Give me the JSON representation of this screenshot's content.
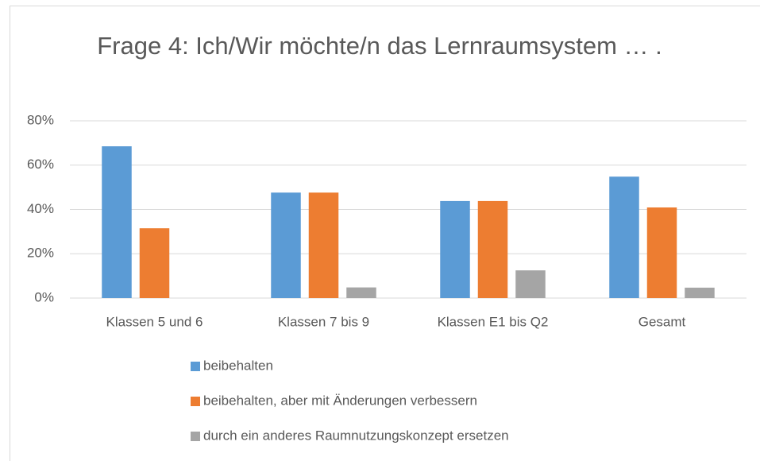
{
  "chart_data": {
    "type": "bar",
    "title": "Frage 4: Ich/Wir möchte/n das Lernraumsystem … .",
    "categories": [
      "Klassen 5 und 6",
      "Klassen 7 bis 9",
      "Klassen E1 bis Q2",
      "Gesamt"
    ],
    "series": [
      {
        "name": "beibehalten",
        "color": "#5b9bd5",
        "values": [
          68.5,
          47.6,
          43.8,
          54.8
        ]
      },
      {
        "name": "beibehalten, aber mit Änderungen verbessern",
        "color": "#ed7d31",
        "values": [
          31.5,
          47.6,
          43.8,
          40.9
        ]
      },
      {
        "name": "durch ein anderes Raumnutzungskonzept ersetzen",
        "color": "#a5a5a5",
        "values": [
          0,
          4.8,
          12.5,
          4.7
        ]
      }
    ],
    "ylim": [
      0,
      80
    ],
    "yticks": [
      {
        "value": 0,
        "label": "0%"
      },
      {
        "value": 20,
        "label": "20%"
      },
      {
        "value": 40,
        "label": "40%"
      },
      {
        "value": 60,
        "label": "60%"
      },
      {
        "value": 80,
        "label": "80%"
      }
    ],
    "grid": true,
    "legend": "bottom"
  }
}
